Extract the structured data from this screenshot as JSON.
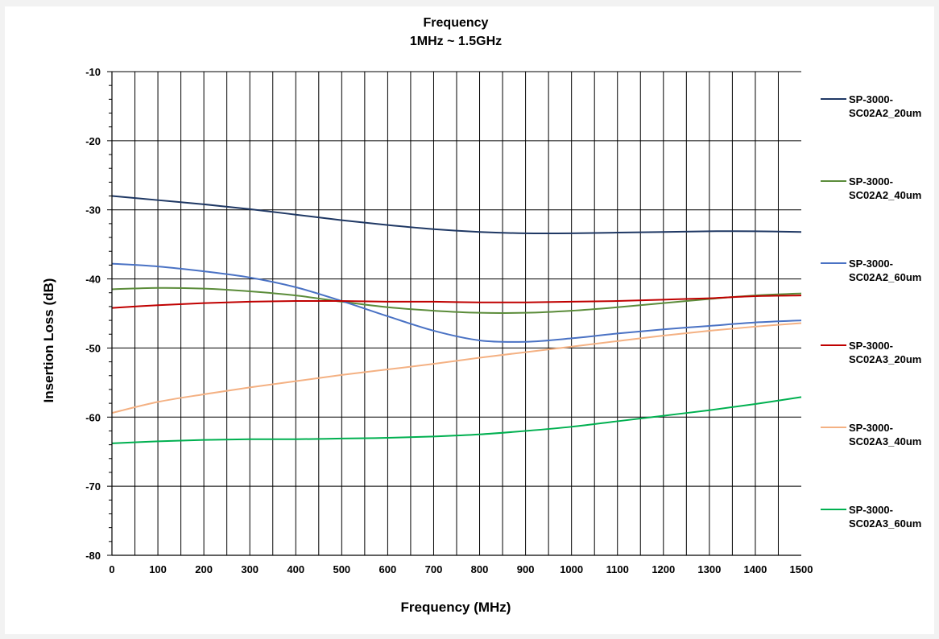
{
  "chart_data": {
    "type": "line",
    "title": "Frequency",
    "subtitle": "1MHz ~ 1.5GHz",
    "xlabel": "Frequency (MHz)",
    "ylabel": "Insertion Loss (dB)",
    "xlim": [
      0,
      1500
    ],
    "ylim": [
      -80,
      -10
    ],
    "x_ticks": [
      0,
      100,
      200,
      300,
      400,
      500,
      600,
      700,
      800,
      900,
      1000,
      1100,
      1200,
      1300,
      1400,
      1500
    ],
    "y_ticks": [
      -10,
      -20,
      -30,
      -40,
      -50,
      -60,
      -70,
      -80
    ],
    "grid": true,
    "legend_position": "right",
    "x": [
      0,
      100,
      200,
      300,
      400,
      500,
      600,
      700,
      800,
      900,
      1000,
      1100,
      1200,
      1300,
      1400,
      1500
    ],
    "series": [
      {
        "name_lines": [
          "SP-3000-",
          "SC02A2_20um"
        ],
        "color": "#1f3864",
        "values": [
          -28.0,
          -28.6,
          -29.2,
          -29.9,
          -30.7,
          -31.5,
          -32.2,
          -32.8,
          -33.2,
          -33.4,
          -33.4,
          -33.3,
          -33.2,
          -33.1,
          -33.1,
          -33.2
        ]
      },
      {
        "name_lines": [
          "SP-3000-",
          "SC02A2_40um"
        ],
        "color": "#5b8c3a",
        "values": [
          -41.5,
          -41.3,
          -41.4,
          -41.8,
          -42.4,
          -43.3,
          -44.1,
          -44.6,
          -44.9,
          -44.9,
          -44.6,
          -44.1,
          -43.5,
          -42.9,
          -42.4,
          -42.1
        ]
      },
      {
        "name_lines": [
          "SP-3000-",
          "SC02A2_60um"
        ],
        "color": "#4a72c4",
        "values": [
          -37.8,
          -38.2,
          -38.9,
          -39.8,
          -41.2,
          -43.2,
          -45.4,
          -47.5,
          -48.9,
          -49.1,
          -48.6,
          -47.9,
          -47.3,
          -46.8,
          -46.3,
          -46.0
        ]
      },
      {
        "name_lines": [
          "SP-3000-",
          "SC02A3_20um"
        ],
        "color": "#c00000",
        "values": [
          -44.2,
          -43.8,
          -43.5,
          -43.3,
          -43.2,
          -43.2,
          -43.3,
          -43.3,
          -43.4,
          -43.4,
          -43.3,
          -43.2,
          -43.0,
          -42.8,
          -42.5,
          -42.4
        ]
      },
      {
        "name_lines": [
          "SP-3000-",
          "SC02A3_40um"
        ],
        "color": "#f4b183",
        "values": [
          -59.4,
          -57.8,
          -56.7,
          -55.7,
          -54.8,
          -53.9,
          -53.1,
          -52.3,
          -51.4,
          -50.6,
          -49.8,
          -49.0,
          -48.2,
          -47.5,
          -46.9,
          -46.4
        ]
      },
      {
        "name_lines": [
          "SP-3000-",
          "SC02A3_60um"
        ],
        "color": "#00b050",
        "values": [
          -63.8,
          -63.5,
          -63.3,
          -63.2,
          -63.2,
          -63.1,
          -63.0,
          -62.8,
          -62.5,
          -62.0,
          -61.4,
          -60.6,
          -59.8,
          -59.0,
          -58.1,
          -57.1
        ]
      }
    ]
  }
}
